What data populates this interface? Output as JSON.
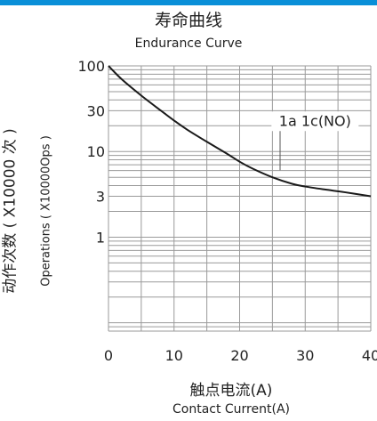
{
  "header": {
    "title_cn": "寿命曲线",
    "title_en": "Endurance Curve",
    "accent_color": "#0a8fd8"
  },
  "axes": {
    "xlabel_cn": "触点电流(A)",
    "xlabel_en": "Contact Current(A)",
    "ylabel_cn": "动作次数 ( X10000 次 )",
    "ylabel_en": "Operations ( X10000Ops )"
  },
  "chart_data": {
    "type": "line",
    "title": "寿命曲线",
    "subtitle": "Endurance Curve",
    "xlabel": "触点电流(A) / Contact Current(A)",
    "ylabel": "动作次数 ( X10000 次 ) / Operations ( X10000Ops )",
    "x_scale": "linear",
    "y_scale": "log",
    "xlim": [
      0,
      40
    ],
    "ylim": [
      0.08,
      100
    ],
    "x_ticks": [
      0,
      10,
      20,
      30,
      40
    ],
    "x_tick_labels": [
      "0",
      "10",
      "20",
      "30",
      "40"
    ],
    "y_ticks": [
      100,
      30,
      10,
      3,
      1
    ],
    "y_tick_labels": [
      "100",
      "30",
      "10",
      "3",
      "1"
    ],
    "grid": true,
    "series": [
      {
        "name": "1a 1c(NO)",
        "x": [
          0,
          2,
          5,
          8,
          10,
          12,
          15,
          18,
          20,
          22,
          25,
          28,
          30,
          33,
          36,
          40
        ],
        "y": [
          100,
          70,
          45,
          30,
          23,
          18,
          13,
          9.5,
          7.6,
          6.3,
          5,
          4.2,
          3.9,
          3.6,
          3.35,
          3.0
        ]
      }
    ],
    "annotations": [
      {
        "text": "1a 1c(NO)",
        "x": 31.5,
        "y": 20,
        "arrow_to": {
          "x": 24,
          "y": 6.5
        }
      }
    ],
    "line_color": "#1a1a1a",
    "grid_color": "#9a9a9a"
  }
}
